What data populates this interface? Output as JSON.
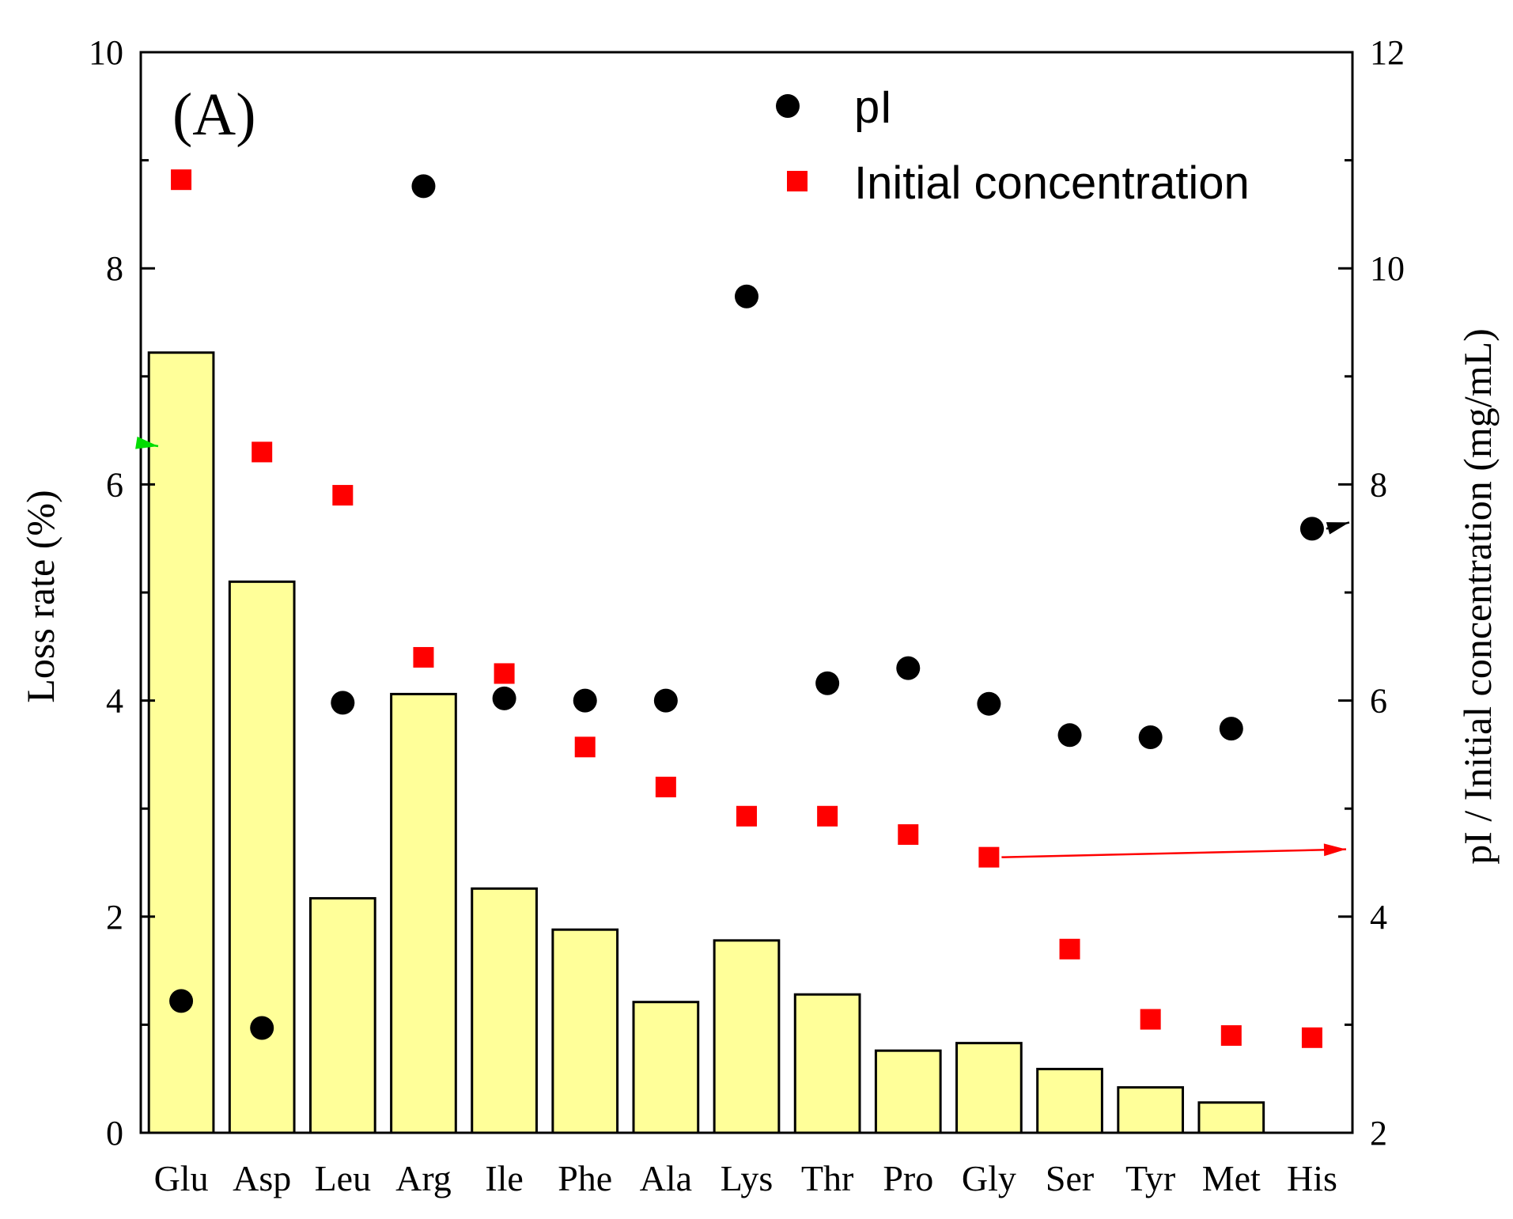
{
  "chart_data": {
    "type": "bar",
    "panel_label": "(A)",
    "categories": [
      "Glu",
      "Asp",
      "Leu",
      "Arg",
      "Ile",
      "Phe",
      "Ala",
      "Lys",
      "Thr",
      "Pro",
      "Gly",
      "Ser",
      "Tyr",
      "Met",
      "His"
    ],
    "left_axis": {
      "label": "Loss rate (%)",
      "ylim": [
        0,
        10
      ],
      "ticks": [
        "0",
        "2",
        "4",
        "6",
        "8",
        "10"
      ]
    },
    "right_axis": {
      "label": "pI / Initial concentration (mg/mL)",
      "ylim": [
        2,
        12
      ],
      "ticks": [
        "2",
        "4",
        "6",
        "8",
        "10",
        "12"
      ]
    },
    "series": [
      {
        "name": "Loss rate",
        "type": "bar",
        "axis": "left",
        "color": "#ffff99",
        "values": [
          7.22,
          5.1,
          2.17,
          4.06,
          2.26,
          1.88,
          1.21,
          1.78,
          1.28,
          0.76,
          0.83,
          0.59,
          0.42,
          0.28,
          null
        ]
      },
      {
        "name": "pI",
        "type": "scatter",
        "marker": "circle",
        "axis": "right",
        "color": "#000000",
        "values": [
          3.22,
          2.97,
          5.98,
          10.76,
          6.02,
          6.0,
          6.0,
          9.74,
          6.16,
          6.3,
          5.97,
          5.68,
          5.66,
          5.74,
          7.59
        ]
      },
      {
        "name": "Initial concentration",
        "type": "scatter",
        "marker": "square",
        "axis": "right",
        "color": "#ff0000",
        "values": [
          10.82,
          8.3,
          7.9,
          6.4,
          6.25,
          5.57,
          5.2,
          4.93,
          4.93,
          4.76,
          4.55,
          3.7,
          3.05,
          2.9,
          2.88
        ]
      }
    ],
    "legend": {
      "position": "top-right",
      "entries": [
        "pI",
        "Initial concentration"
      ]
    },
    "annotations": [
      {
        "type": "arrow",
        "color": "#00dd00",
        "points_to": "left-axis",
        "from_category": "Glu"
      },
      {
        "type": "arrow",
        "color": "#000000",
        "points_to": "right-axis",
        "from_category": "His"
      },
      {
        "type": "arrow",
        "color": "#ff0000",
        "points_to": "right-axis",
        "from_category": "Gly"
      }
    ]
  }
}
